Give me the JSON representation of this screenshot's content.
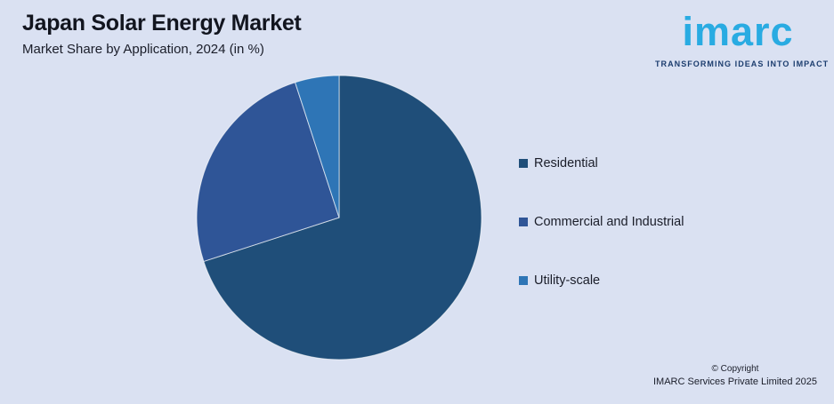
{
  "page": {
    "background_color": "#dae1f2"
  },
  "header": {
    "title": "Japan Solar Energy Market",
    "subtitle": "Market Share by Application, 2024 (in %)"
  },
  "logo": {
    "wordmark": "imarc",
    "tagline": "TRANSFORMING IDEAS INTO IMPACT",
    "brand_color": "#29abe2",
    "tagline_color": "#1c3d6e"
  },
  "chart_data": {
    "type": "pie",
    "title": "Japan Solar Energy Market",
    "subtitle": "Market Share by Application, 2024 (in %)",
    "categories": [
      "Residential",
      "Commercial and Industrial",
      "Utility-scale"
    ],
    "values": [
      70,
      25,
      5
    ],
    "unit": "%",
    "colors": [
      "#1f4e79",
      "#2f5597",
      "#2e75b6"
    ],
    "start_angle_deg": 0,
    "direction": "clockwise",
    "legend_position": "right",
    "data_labels": false,
    "separator_color": "rgba(255,255,255,0.65)"
  },
  "footer": {
    "copyright_line1": "© Copyright",
    "copyright_line2": "IMARC Services Private Limited 2025"
  }
}
